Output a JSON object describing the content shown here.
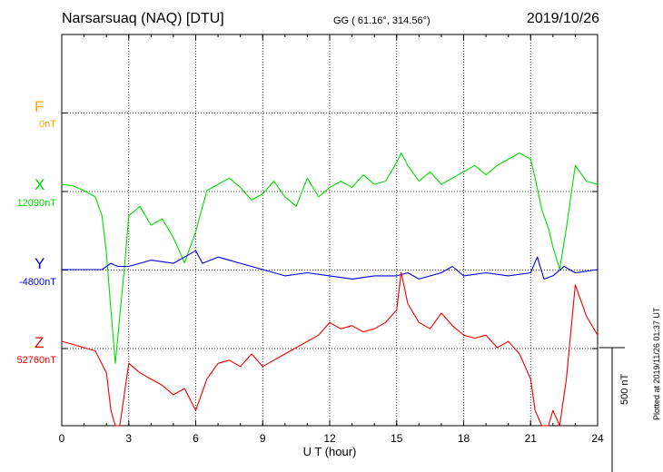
{
  "header": {
    "title": "Narsarsuaq (NAQ)  [DTU]",
    "coords": "GG ( 61.16°, 314.56°)",
    "date": "2019/10/26"
  },
  "side_note": "Plotted at 2019/11/26 01:37 UT",
  "chart_data": {
    "type": "line",
    "xlabel": "U T (hour)",
    "xlim": [
      0,
      24
    ],
    "xticks": [
      "0",
      "3",
      "6",
      "9",
      "12",
      "15",
      "18",
      "21",
      "24"
    ],
    "scale_bar": "500 nT",
    "units_per_division": 250,
    "components": [
      {
        "name": "F",
        "baseline": "0nT",
        "color": "#ffa500",
        "values": []
      },
      {
        "name": "X",
        "baseline": "12090nT",
        "color": "#00dd00",
        "x": [
          0,
          0.5,
          1,
          1.5,
          1.8,
          2,
          2.2,
          2.4,
          2.6,
          2.8,
          3,
          3.5,
          4,
          4.5,
          5,
          5.5,
          6,
          6.5,
          7,
          7.5,
          8,
          8.5,
          9,
          9.5,
          10,
          10.5,
          11,
          11.5,
          12,
          12.5,
          13,
          13.5,
          14,
          14.5,
          15,
          15.2,
          15.5,
          16,
          16.5,
          17,
          17.5,
          18,
          18.5,
          19,
          19.5,
          20,
          20.5,
          21,
          21.2,
          21.5,
          21.8,
          22,
          22.3,
          22.6,
          23,
          23.5,
          24
        ],
        "values": [
          20,
          15,
          0,
          -20,
          -80,
          -200,
          -380,
          -550,
          -400,
          -250,
          -80,
          -50,
          -110,
          -90,
          -150,
          -230,
          -130,
          0,
          20,
          40,
          10,
          -30,
          -10,
          30,
          -20,
          -50,
          40,
          -20,
          10,
          30,
          10,
          50,
          20,
          30,
          90,
          120,
          80,
          30,
          60,
          20,
          40,
          60,
          80,
          50,
          80,
          100,
          120,
          100,
          40,
          -60,
          -120,
          -180,
          -250,
          -120,
          80,
          30,
          20
        ]
      },
      {
        "name": "Y",
        "baseline": "-4800nT",
        "color": "#0000dd",
        "x": [
          0,
          1,
          1.8,
          2.2,
          2.5,
          3,
          4,
          5,
          5.5,
          6,
          6.3,
          7,
          8,
          9,
          10,
          11,
          12,
          13,
          14,
          15,
          15.5,
          16,
          17,
          17.5,
          18,
          19,
          20,
          21,
          21.3,
          21.6,
          22,
          22.5,
          23,
          24
        ],
        "values": [
          0,
          0,
          0,
          20,
          10,
          10,
          30,
          20,
          40,
          60,
          20,
          40,
          20,
          0,
          -20,
          -10,
          -20,
          -30,
          -20,
          -20,
          -10,
          -30,
          -10,
          10,
          -20,
          -10,
          -20,
          -10,
          40,
          -30,
          -20,
          10,
          -10,
          0
        ]
      },
      {
        "name": "Z",
        "baseline": "52760nT",
        "color": "#ee0000",
        "x": [
          0,
          0.5,
          1,
          1.5,
          2,
          2.2,
          2.4,
          2.6,
          2.8,
          3,
          3.5,
          4,
          4.5,
          5,
          5.5,
          6,
          6.5,
          7,
          7.5,
          8,
          8.5,
          9,
          9.5,
          10,
          10.5,
          11,
          11.5,
          12,
          12.5,
          13,
          13.5,
          14,
          14.5,
          15,
          15.2,
          15.5,
          16,
          16.5,
          17,
          17.5,
          18,
          18.5,
          19,
          19.5,
          20,
          20.5,
          21,
          21.2,
          21.5,
          21.8,
          22,
          22.3,
          22.6,
          23,
          23.5,
          24
        ],
        "values": [
          20,
          10,
          0,
          -10,
          -80,
          -200,
          -340,
          -250,
          -150,
          -50,
          -80,
          -100,
          -120,
          -150,
          -130,
          -200,
          -100,
          -50,
          -40,
          -60,
          -20,
          -60,
          -40,
          -20,
          0,
          20,
          40,
          80,
          60,
          70,
          50,
          60,
          80,
          120,
          240,
          140,
          80,
          60,
          110,
          70,
          40,
          30,
          40,
          0,
          20,
          -20,
          -100,
          -200,
          -360,
          -300,
          -200,
          -300,
          -100,
          200,
          100,
          40
        ]
      }
    ]
  }
}
